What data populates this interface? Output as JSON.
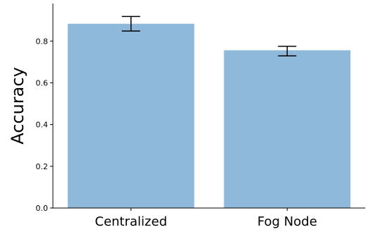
{
  "chart_data": {
    "type": "bar",
    "title": "",
    "xlabel": "",
    "ylabel": "Accuracy",
    "categories": [
      "Centralized",
      "Fog Node"
    ],
    "values": [
      0.883,
      0.756
    ],
    "error_low": [
      0.848,
      0.729
    ],
    "error_high": [
      0.918,
      0.775
    ],
    "ylim": [
      0,
      0.98
    ],
    "yticks": [
      0.0,
      0.2,
      0.4,
      0.6,
      0.8
    ],
    "ytick_labels": [
      "0.0",
      "0.2",
      "0.4",
      "0.6",
      "0.8"
    ],
    "grid": false,
    "bar_color": "#8fb9da",
    "error_color": "#000000"
  }
}
